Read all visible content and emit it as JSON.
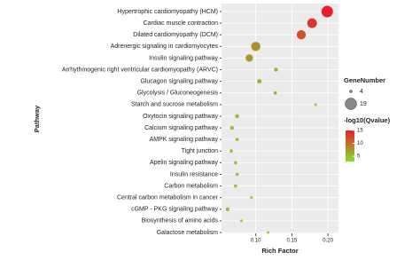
{
  "chart_data": {
    "type": "scatter",
    "x_label": "Rich Factor",
    "y_label": "Pathway",
    "categories": [
      "Hypertrophic cardiomyopathy (HCM)",
      "Cardiac muscle contraction",
      "Dilated cardiomyopathy (DCM)",
      "Adrenergic signaling in cardiomyocytes",
      "Insulin signaling pathway",
      "Arrhythmogenic right ventricular cardiomyopathy (ARVC)",
      "Glucagon signaling pathway",
      "Glycolysis / Gluconeogenesis",
      "Starch and sucrose metabolism",
      "Oxytocin signaling pathway",
      "Calcium signaling pathway",
      "AMPK signaling pathway",
      "Tight junction",
      "Apelin signaling pathway",
      "Insulin resistance",
      "Carbon metabolism",
      "Central carbon metabolism in cancer",
      "cGMP - PKG signaling pathway",
      "Biosynthesis of amino acids",
      "Galactose metabolism"
    ],
    "values": [
      0.199,
      0.178,
      0.163,
      0.1,
      0.091,
      0.128,
      0.105,
      0.127,
      0.183,
      0.074,
      0.067,
      0.074,
      0.066,
      0.072,
      0.074,
      0.072,
      0.094,
      0.061,
      0.08,
      0.117
    ],
    "sizes": [
      19,
      16,
      15,
      15,
      12,
      6,
      7,
      5,
      4,
      6,
      6,
      5,
      5,
      5,
      5,
      5,
      4,
      6,
      4,
      4
    ],
    "qvalues": [
      15,
      13.5,
      12,
      8,
      7.5,
      6,
      6,
      5.5,
      4,
      5,
      5,
      5,
      4.5,
      4.5,
      4.5,
      4.5,
      4,
      4.5,
      4,
      3.5
    ],
    "xlim": [
      0.0525,
      0.2146
    ],
    "xticks": [
      {
        "value": 0.1,
        "label": "0.10"
      },
      {
        "value": 0.15,
        "label": "0.15"
      },
      {
        "value": 0.2,
        "label": "0.20"
      }
    ],
    "grid": true,
    "size_legend": {
      "title": "GeneNumber",
      "ticks": [
        4,
        19
      ]
    },
    "color_legend": {
      "title": "-log10(Qvalue)",
      "ticks": [
        5,
        10,
        15
      ],
      "lim": [
        3,
        15
      ],
      "colors": [
        "#80e030",
        "#e8202c"
      ]
    }
  }
}
